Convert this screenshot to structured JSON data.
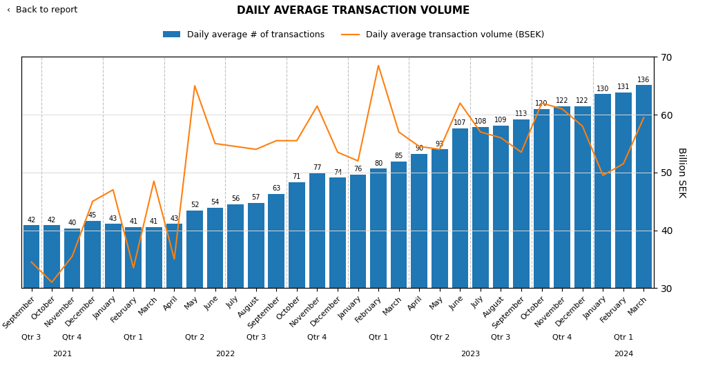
{
  "chart_data": {
    "type": "bar",
    "title": "DAILY AVERAGE TRANSACTION VOLUME",
    "annotations": [
      "‹  Back to report"
    ],
    "categories": [
      "September",
      "October",
      "November",
      "December",
      "January",
      "February",
      "March",
      "April",
      "May",
      "June",
      "July",
      "August",
      "September",
      "October",
      "November",
      "December",
      "January",
      "February",
      "March",
      "April",
      "May",
      "June",
      "July",
      "August",
      "September",
      "October",
      "November",
      "December",
      "January",
      "February",
      "March"
    ],
    "quarters": [
      "Qtr 3",
      "Qtr 4",
      "Qtr 4",
      "Qtr 4",
      "Qtr 1",
      "Qtr 1",
      "Qtr 1",
      "Qtr 2",
      "Qtr 2",
      "Qtr 2",
      "Qtr 3",
      "Qtr 3",
      "Qtr 3",
      "Qtr 4",
      "Qtr 4",
      "Qtr 4",
      "Qtr 1",
      "Qtr 1",
      "Qtr 1",
      "Qtr 2",
      "Qtr 2",
      "Qtr 2",
      "Qtr 3",
      "Qtr 3",
      "Qtr 3",
      "Qtr 4",
      "Qtr 4",
      "Qtr 4",
      "Qtr 1",
      "Qtr 1",
      "Qtr 1"
    ],
    "years": [
      "2021",
      "2021",
      "2021",
      "2021",
      "2022",
      "2022",
      "2022",
      "2022",
      "2022",
      "2022",
      "2022",
      "2022",
      "2022",
      "2022",
      "2022",
      "2022",
      "2023",
      "2023",
      "2023",
      "2023",
      "2023",
      "2023",
      "2023",
      "2023",
      "2023",
      "2023",
      "2023",
      "2023",
      "2024",
      "2024",
      "2024"
    ],
    "series": [
      {
        "name": "Daily average # of transactions",
        "type": "bar",
        "data_labels": true,
        "values": [
          42,
          42,
          40,
          45,
          43,
          41,
          41,
          43,
          52,
          54,
          56,
          57,
          63,
          71,
          77,
          74,
          76,
          80,
          85,
          90,
          93,
          107,
          108,
          109,
          113,
          120,
          122,
          122,
          130,
          131,
          136
        ]
      },
      {
        "name": "Daily average transaction volume (BSEK)",
        "type": "line",
        "axis": "y2",
        "values": [
          34.5,
          31.0,
          35.5,
          45.0,
          47.0,
          33.5,
          48.5,
          35.0,
          65.0,
          55.0,
          54.5,
          54.0,
          55.5,
          55.5,
          61.5,
          53.5,
          52.0,
          68.5,
          57.0,
          54.5,
          54.0,
          62.0,
          57.0,
          56.0,
          53.5,
          62.0,
          61.0,
          58.0,
          49.5,
          51.5,
          59.5
        ]
      }
    ],
    "ylim": [
      0,
      155
    ],
    "yticks": [],
    "y2lim": [
      30,
      70
    ],
    "y2ticks": [
      30,
      40,
      50,
      60,
      70
    ],
    "y2label": "Billion SEK",
    "grid": true,
    "legend": "upper center"
  }
}
